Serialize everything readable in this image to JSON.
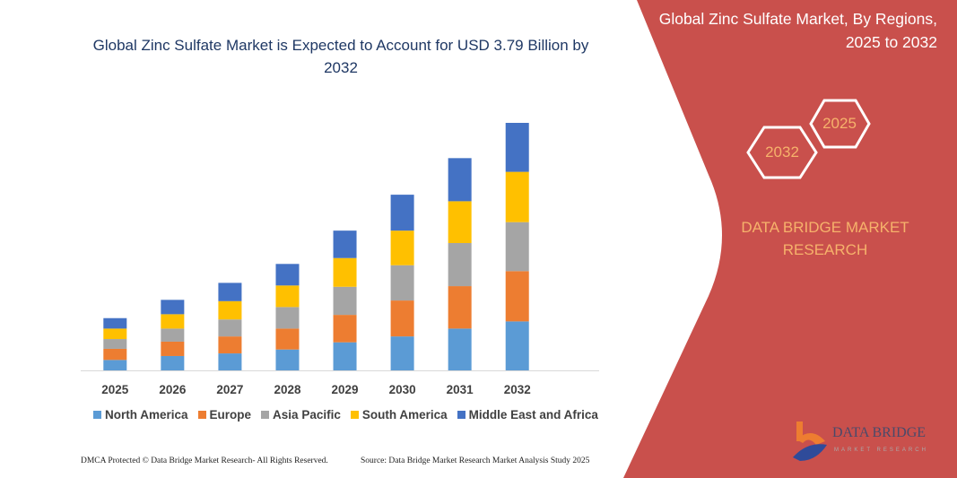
{
  "header": {
    "title": "Global Zinc Sulfate Market is Expected to Account for USD 3.79 Billion by 2032"
  },
  "side_panel": {
    "title": "Global Zinc Sulfate Market, By Regions, 2025 to 2032",
    "hex_start": "2025",
    "hex_end": "2032",
    "brand": "DATA BRIDGE MARKET RESEARCH",
    "logo_text": "DATA BRIDGE",
    "logo_sub": "MARKET RESEARCH",
    "panel_color": "#c9504c",
    "accent_color": "#f6b26b"
  },
  "footer": {
    "left": "DMCA Protected © Data Bridge Market Research- All Rights Reserved.",
    "right": "Source: Data Bridge Market Research  Market Analysis Study 2025"
  },
  "chart_data": {
    "type": "bar",
    "stacked": true,
    "title": "Global Zinc Sulfate Market is Expected to Account for USD 3.79 Billion by 2032",
    "xlabel": "",
    "ylabel": "",
    "ylim": [
      0,
      3.79
    ],
    "grid": false,
    "legend": "bottom",
    "categories": [
      "2025",
      "2026",
      "2027",
      "2028",
      "2029",
      "2030",
      "2031",
      "2032"
    ],
    "series": [
      {
        "name": "North America",
        "color": "#5b9bd5",
        "values": [
          0.16,
          0.22,
          0.26,
          0.32,
          0.43,
          0.52,
          0.64,
          0.75
        ]
      },
      {
        "name": "Europe",
        "color": "#ed7d31",
        "values": [
          0.17,
          0.22,
          0.26,
          0.32,
          0.42,
          0.55,
          0.65,
          0.77
        ]
      },
      {
        "name": "Asia Pacific",
        "color": "#a5a5a5",
        "values": [
          0.15,
          0.2,
          0.26,
          0.33,
          0.43,
          0.54,
          0.66,
          0.75
        ]
      },
      {
        "name": "South America",
        "color": "#ffc000",
        "values": [
          0.16,
          0.22,
          0.28,
          0.33,
          0.44,
          0.53,
          0.64,
          0.77
        ]
      },
      {
        "name": "Middle East and Africa",
        "color": "#4472c4",
        "values": [
          0.16,
          0.22,
          0.28,
          0.33,
          0.42,
          0.55,
          0.66,
          0.75
        ]
      }
    ]
  }
}
